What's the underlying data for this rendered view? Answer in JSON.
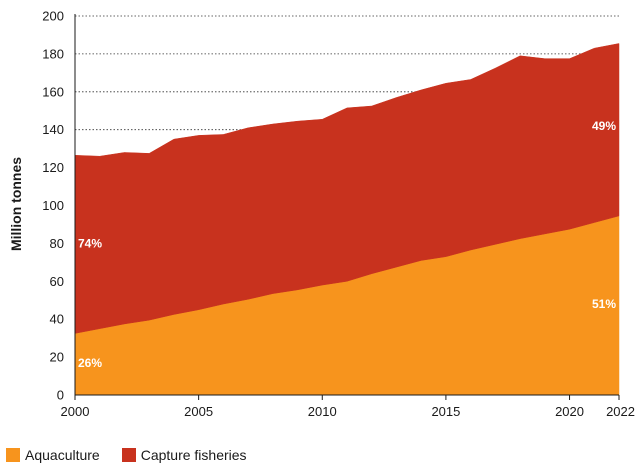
{
  "chart_data": {
    "type": "area",
    "stacked": true,
    "title": "",
    "xlabel": "",
    "ylabel": "Million tonnes",
    "xlim": [
      2000,
      2022
    ],
    "ylim": [
      0,
      200
    ],
    "x_ticks": [
      "2000",
      "2005",
      "2010",
      "2015",
      "2020",
      "2022"
    ],
    "y_ticks": [
      "0",
      "20",
      "40",
      "60",
      "80",
      "100",
      "120",
      "140",
      "160",
      "180",
      "200"
    ],
    "grid": "horizontal dotted",
    "legend_position": "bottom-left",
    "x": [
      2000,
      2001,
      2002,
      2003,
      2004,
      2005,
      2006,
      2007,
      2008,
      2009,
      2010,
      2011,
      2012,
      2013,
      2014,
      2015,
      2016,
      2017,
      2018,
      2019,
      2020,
      2021,
      2022
    ],
    "series": [
      {
        "name": "Aquaculture",
        "color": "#f7941d",
        "values": [
          32.5,
          35,
          37.5,
          39.5,
          42.5,
          45,
          48,
          50.5,
          53.5,
          55.5,
          58,
          60,
          64,
          67.5,
          71,
          73,
          76.5,
          79.5,
          82.5,
          85,
          87.5,
          91,
          94.5
        ]
      },
      {
        "name": "Capture fisheries",
        "color": "#c8321e",
        "values": [
          94,
          91,
          90.5,
          88,
          92.5,
          92,
          89.5,
          90.5,
          89.5,
          89,
          87.5,
          91.5,
          88.5,
          89.5,
          90,
          91.5,
          90,
          93,
          96.5,
          92.5,
          90,
          92,
          91
        ]
      }
    ],
    "annotations": [
      {
        "text": "74%",
        "x": 2000,
        "y": 80,
        "anchor": "start"
      },
      {
        "text": "26%",
        "x": 2000,
        "y": 17,
        "anchor": "start"
      },
      {
        "text": "49%",
        "x": 2022,
        "y": 142,
        "anchor": "end"
      },
      {
        "text": "51%",
        "x": 2022,
        "y": 48,
        "anchor": "end"
      }
    ]
  }
}
